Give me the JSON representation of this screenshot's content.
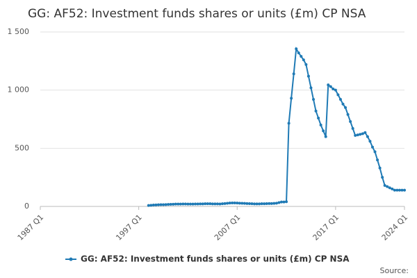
{
  "chart_data": {
    "type": "line",
    "title": "GG: AF52: Investment funds shares or units (£m) CP NSA",
    "source": "Source:",
    "categories": [
      "1987 Q1",
      null,
      null,
      null,
      null,
      null,
      null,
      null,
      null,
      null,
      null,
      null,
      null,
      null,
      null,
      null,
      null,
      null,
      null,
      null,
      null,
      null,
      null,
      null,
      null,
      null,
      null,
      null,
      null,
      null,
      null,
      null,
      null,
      null,
      null,
      null,
      null,
      null,
      null,
      null,
      "1997 Q1",
      null,
      null,
      null,
      null,
      null,
      null,
      null,
      null,
      null,
      null,
      null,
      null,
      null,
      null,
      null,
      null,
      null,
      null,
      null,
      null,
      null,
      null,
      null,
      null,
      null,
      null,
      null,
      null,
      null,
      null,
      null,
      null,
      null,
      null,
      null,
      null,
      null,
      null,
      null,
      "2007 Q1",
      null,
      null,
      null,
      null,
      null,
      null,
      null,
      null,
      null,
      null,
      null,
      null,
      null,
      null,
      null,
      null,
      null,
      null,
      null,
      null,
      null,
      null,
      null,
      null,
      null,
      null,
      null,
      null,
      null,
      null,
      null,
      null,
      null,
      null,
      null,
      null,
      null,
      null,
      null,
      "2017 Q1",
      null,
      null,
      null,
      null,
      null,
      null,
      null,
      null,
      null,
      null,
      null,
      null,
      null,
      null,
      null,
      null,
      null,
      null,
      null,
      null,
      null,
      null,
      null,
      null,
      null,
      null,
      null,
      "2024 Q1"
    ],
    "series": [
      {
        "name": "GG: AF52: Investment funds shares or units (£m) CP NSA",
        "color": "#1f7ab5",
        "values": [
          null,
          null,
          null,
          null,
          null,
          null,
          null,
          null,
          null,
          null,
          null,
          null,
          null,
          null,
          null,
          null,
          null,
          null,
          null,
          null,
          null,
          null,
          null,
          null,
          null,
          null,
          null,
          null,
          null,
          null,
          null,
          null,
          null,
          null,
          null,
          null,
          null,
          null,
          null,
          null,
          null,
          null,
          null,
          null,
          8,
          10,
          12,
          13,
          14,
          15,
          15,
          16,
          17,
          18,
          19,
          20,
          20,
          20,
          21,
          21,
          20,
          20,
          20,
          21,
          21,
          22,
          22,
          23,
          23,
          23,
          22,
          22,
          22,
          21,
          23,
          25,
          27,
          29,
          30,
          30,
          29,
          28,
          27,
          26,
          25,
          24,
          23,
          22,
          22,
          22,
          23,
          23,
          24,
          25,
          25,
          26,
          28,
          33,
          38,
          38,
          40,
          715,
          930,
          1140,
          1355,
          1320,
          1290,
          1260,
          1220,
          1120,
          1020,
          920,
          820,
          760,
          700,
          650,
          600,
          1045,
          1030,
          1010,
          1000,
          960,
          920,
          880,
          850,
          790,
          730,
          670,
          610,
          615,
          620,
          625,
          635,
          600,
          560,
          510,
          470,
          400,
          330,
          250,
          180,
          170,
          160,
          150,
          140,
          140,
          140,
          140,
          140
        ]
      }
    ],
    "ylim": [
      0,
      1500
    ],
    "yticks": [
      0,
      500,
      {
        "value": 1000,
        "label": "1 000"
      },
      {
        "value": 1500,
        "label": "1 500"
      }
    ],
    "grid": true
  }
}
